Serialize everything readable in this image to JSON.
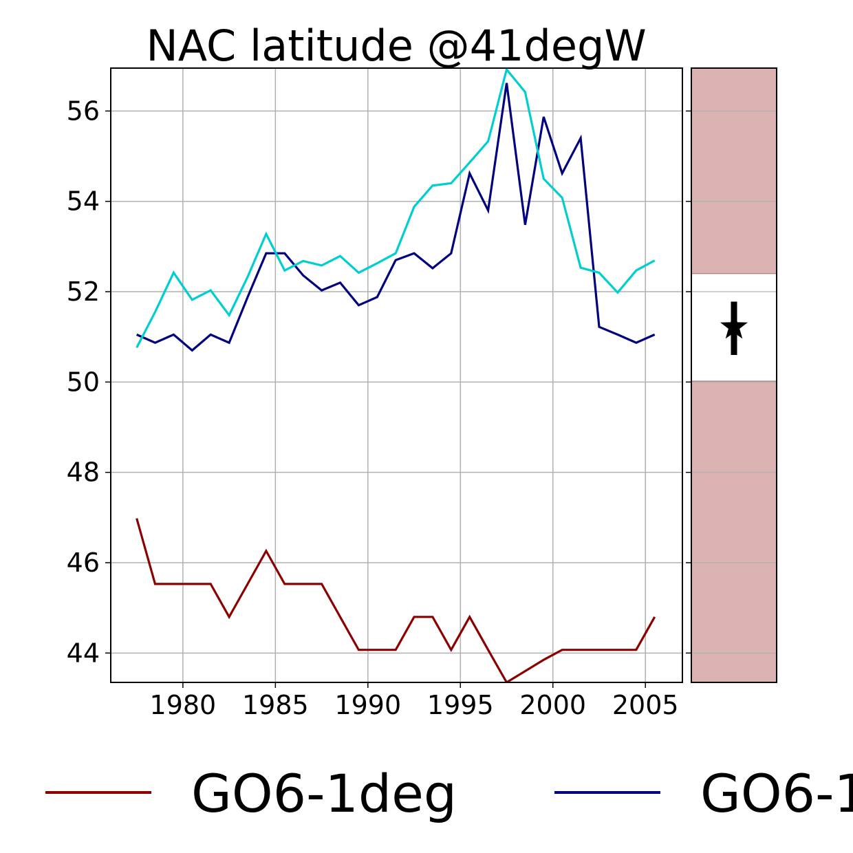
{
  "chart_data": {
    "type": "line",
    "title": "NAC latitude @41degW",
    "xlabel": "",
    "ylabel": "",
    "xlim": [
      1976.1,
      2007.0
    ],
    "ylim": [
      43.35,
      56.95
    ],
    "xticks": [
      1980,
      1985,
      1990,
      1995,
      2000,
      2005
    ],
    "yticks": [
      44,
      46,
      48,
      50,
      52,
      54,
      56
    ],
    "grid": true,
    "x": [
      1977.5,
      1978.5,
      1979.5,
      1980.5,
      1981.5,
      1982.5,
      1983.5,
      1984.5,
      1985.5,
      1986.5,
      1987.5,
      1988.5,
      1989.5,
      1990.5,
      1991.5,
      1992.5,
      1993.5,
      1994.5,
      1995.5,
      1996.5,
      1997.5,
      1998.5,
      1999.5,
      2000.5,
      2001.5,
      2002.5,
      2003.5,
      2004.5,
      2005.5
    ],
    "series": [
      {
        "name": "GO6-1deg",
        "color": "#8b0000",
        "values": [
          46.98,
          45.53,
          45.53,
          45.53,
          45.53,
          44.8,
          45.53,
          46.26,
          45.53,
          45.53,
          45.53,
          44.8,
          44.07,
          44.07,
          44.07,
          44.8,
          44.8,
          44.07,
          44.8,
          44.07,
          43.35,
          43.6,
          43.85,
          44.07,
          44.07,
          44.07,
          44.07,
          44.07,
          44.8
        ]
      },
      {
        "name": "GO6-1",
        "color": "#00007f",
        "values": [
          51.05,
          50.87,
          51.05,
          50.7,
          51.05,
          50.87,
          51.88,
          52.85,
          52.85,
          52.36,
          52.03,
          52.2,
          51.7,
          51.88,
          52.7,
          52.85,
          52.52,
          52.85,
          54.62,
          53.8,
          56.62,
          53.48,
          55.87,
          54.62,
          55.4,
          51.22,
          51.05,
          50.87,
          51.05
        ]
      },
      {
        "color": "#00ced1",
        "values": [
          50.76,
          51.55,
          52.42,
          51.82,
          52.03,
          51.48,
          52.33,
          53.28,
          52.47,
          52.68,
          52.58,
          52.79,
          52.42,
          52.63,
          52.85,
          53.88,
          54.35,
          54.4,
          54.86,
          55.33,
          56.92,
          56.42,
          54.5,
          54.08,
          52.53,
          52.42,
          51.98,
          52.47,
          52.69
        ]
      }
    ],
    "side_panel": {
      "band_color": "#dbb3b3",
      "band_low": 50.02,
      "band_high": 52.4,
      "marker_value": 51.22,
      "error_low": 50.6,
      "error_high": 51.78,
      "marker": "star"
    },
    "legend": {
      "placement": "bottom",
      "entries": [
        "GO6-1deg",
        "GO6-1"
      ]
    }
  }
}
